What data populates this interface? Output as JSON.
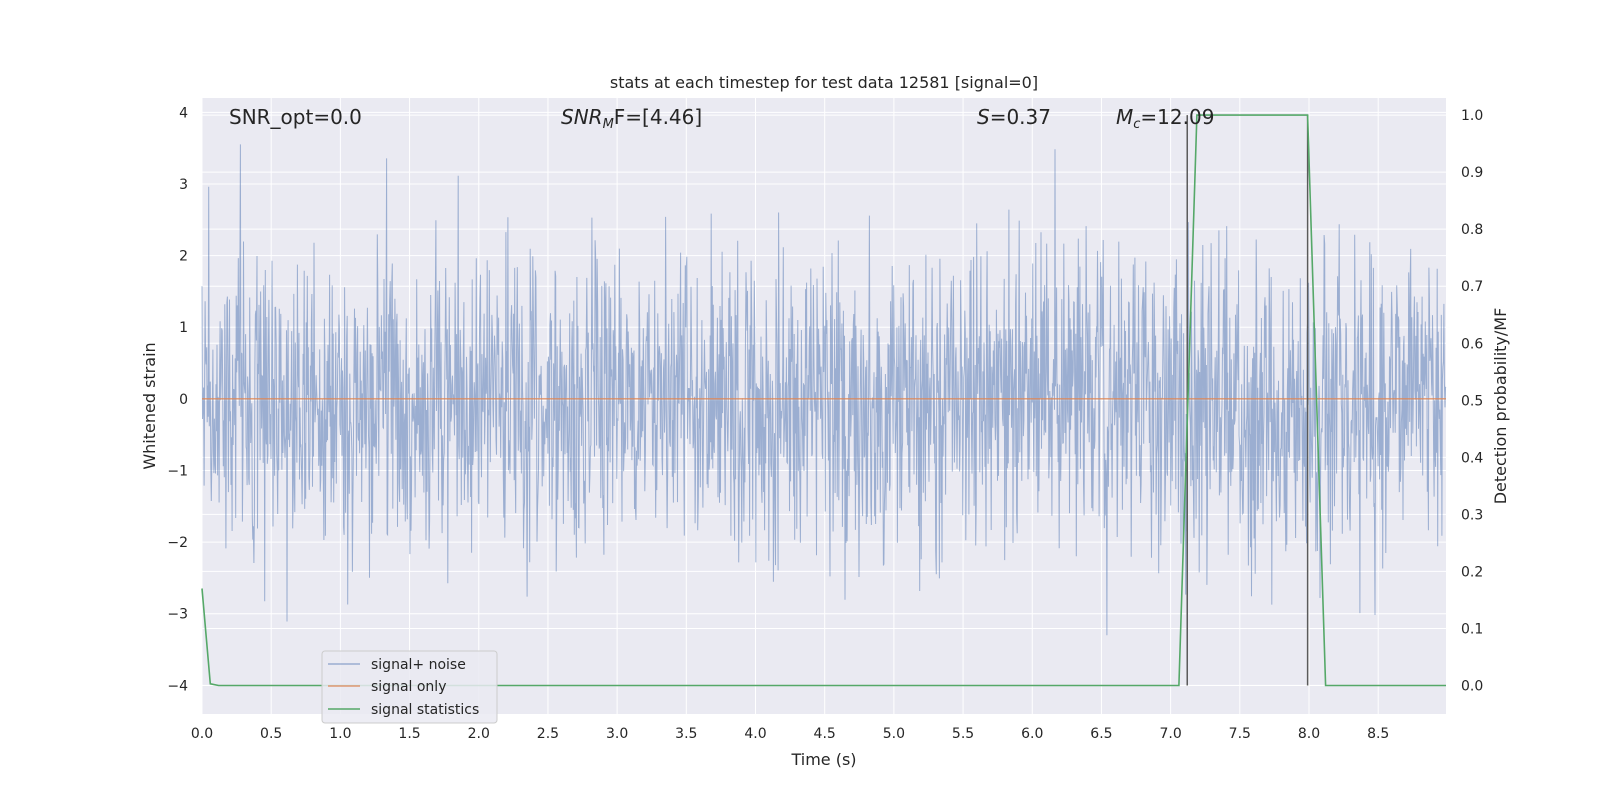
{
  "chart_data": {
    "type": "line",
    "title": "stats at each timestep for test data 12581 [signal=0]",
    "xlabel": "Time (s)",
    "ylabel": "Whitened strain",
    "ylabel_right": "Detection probability/MF",
    "xlim": [
      0.0,
      8.99
    ],
    "ylim": [
      -4.4,
      4.2
    ],
    "ylim_right": [
      -0.05,
      1.03
    ],
    "xticks": [
      "0.0",
      "0.5",
      "1.0",
      "1.5",
      "2.0",
      "2.5",
      "3.0",
      "3.5",
      "4.0",
      "4.5",
      "5.0",
      "5.5",
      "6.0",
      "6.5",
      "7.0",
      "7.5",
      "8.0",
      "8.5"
    ],
    "yticks": [
      "4",
      "3",
      "2",
      "1",
      "0",
      "−1",
      "−2",
      "−3",
      "−4"
    ],
    "yticks_right": [
      "1.0",
      "0.9",
      "0.8",
      "0.7",
      "0.6",
      "0.5",
      "0.4",
      "0.3",
      "0.2",
      "0.1",
      "0.0"
    ],
    "grid": true,
    "legend_position": "lower-left",
    "annotations": {
      "snr_opt": "SNR_opt=0.0",
      "snr_mf_sym": "SNR",
      "snr_mf_sub": "M",
      "snr_mf_after": "F=[4.46]",
      "s_sym": "S",
      "s_val": "=0.37",
      "mc_sym": "M",
      "mc_sub": "c",
      "mc_val": "=12.09"
    },
    "series": [
      {
        "name": "signal+ noise",
        "color": "#4c72b0",
        "amplitude_band": [
          -3.3,
          3.8
        ]
      },
      {
        "name": "signal only",
        "color": "#dd8452",
        "x": [
          0.0,
          8.99
        ],
        "y": [
          0.0,
          0.0
        ]
      },
      {
        "name": "signal statistics",
        "color": "#55a868",
        "axis": "right",
        "x": [
          0.0,
          0.06,
          0.12,
          7.06,
          7.19,
          7.99,
          8.12,
          8.99
        ],
        "y": [
          0.17,
          0.003,
          0.0,
          0.0,
          1.0,
          1.0,
          0.0,
          0.0
        ]
      }
    ],
    "vertical_markers": {
      "color": "#5a5a5a",
      "x": [
        7.12,
        7.99
      ],
      "y_top_right": [
        1.0,
        1.0
      ]
    }
  }
}
